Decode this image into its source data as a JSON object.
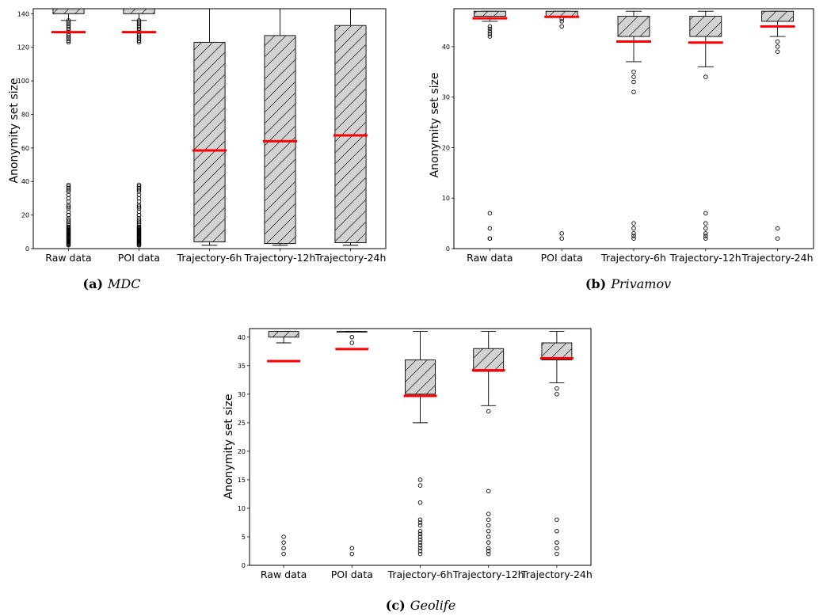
{
  "chart_data": [
    {
      "type": "box",
      "panel_label": "(a)",
      "caption": "MDC",
      "ylabel": "Anonymity set size",
      "ylim": [
        0,
        143
      ],
      "yticks": [
        0,
        20,
        40,
        60,
        80,
        100,
        120,
        140
      ],
      "categories": [
        "Raw data",
        "POI data",
        "Trajectory-6h",
        "Trajectory-12h",
        "Trajectory-24h"
      ],
      "boxes": [
        {
          "q1": 140,
          "q3": 143,
          "whisker_low": 136,
          "whisker_high": 143,
          "mean": 129,
          "outliers": [
            2,
            2.5,
            3,
            3.5,
            4,
            4.5,
            5,
            5.5,
            6,
            6.5,
            7,
            7.5,
            8,
            8.5,
            9,
            9.5,
            10,
            10.5,
            11,
            11.5,
            12,
            12.5,
            13,
            14,
            15,
            16,
            17,
            18,
            20,
            20,
            22,
            24,
            25,
            26,
            28,
            30,
            32,
            34,
            35,
            36,
            37,
            38,
            123,
            124,
            125,
            126,
            127,
            128,
            130,
            131,
            132,
            133,
            134,
            135,
            136
          ]
        },
        {
          "q1": 140,
          "q3": 143,
          "whisker_low": 136,
          "whisker_high": 143,
          "mean": 129,
          "outliers": [
            2,
            2.5,
            3,
            3.5,
            4,
            4.5,
            5,
            5.5,
            6,
            6.5,
            7,
            7.5,
            8,
            8.5,
            9,
            9.5,
            10,
            10.5,
            11,
            11.5,
            12,
            12.5,
            13,
            14,
            15,
            16,
            17,
            18,
            20,
            20,
            22,
            24,
            25,
            26,
            28,
            30,
            32,
            34,
            35,
            36,
            37,
            38,
            123,
            124,
            125,
            126,
            127,
            128,
            130,
            131,
            132,
            133,
            134,
            135,
            136
          ]
        },
        {
          "q1": 4,
          "q3": 123,
          "whisker_low": 2,
          "whisker_high": 143,
          "mean": 58.5,
          "outliers": []
        },
        {
          "q1": 3,
          "q3": 127,
          "whisker_low": 2,
          "whisker_high": 143,
          "mean": 64,
          "outliers": []
        },
        {
          "q1": 3.5,
          "q3": 133,
          "whisker_low": 2,
          "whisker_high": 143,
          "mean": 67.5,
          "outliers": []
        }
      ]
    },
    {
      "type": "box",
      "panel_label": "(b)",
      "caption": "Privamov",
      "ylabel": "Anonymity set size",
      "ylim": [
        0,
        47.5
      ],
      "yticks": [
        0,
        10,
        20,
        30,
        40
      ],
      "categories": [
        "Raw data",
        "POI data",
        "Trajectory-6h",
        "Trajectory-12h",
        "Trajectory-24h"
      ],
      "boxes": [
        {
          "q1": 46,
          "q3": 47,
          "whisker_low": 45,
          "whisker_high": 47,
          "mean": 45.6,
          "outliers": [
            2,
            2,
            4,
            7,
            42,
            42.5,
            43,
            43.5,
            44
          ]
        },
        {
          "q1": 46,
          "q3": 47,
          "whisker_low": 46,
          "whisker_high": 47,
          "mean": 45.9,
          "outliers": [
            2,
            3,
            44,
            45,
            45.5
          ]
        },
        {
          "q1": 42,
          "q3": 46,
          "whisker_low": 37,
          "whisker_high": 47,
          "mean": 41,
          "outliers": [
            2,
            2.5,
            3,
            4,
            5,
            31,
            33,
            34,
            35
          ]
        },
        {
          "q1": 42,
          "q3": 46,
          "whisker_low": 36,
          "whisker_high": 47,
          "mean": 40.8,
          "outliers": [
            2,
            2.5,
            3,
            4,
            5,
            7,
            34
          ]
        },
        {
          "q1": 45,
          "q3": 47,
          "whisker_low": 42,
          "whisker_high": 47,
          "mean": 44,
          "outliers": [
            2,
            4,
            39,
            40,
            41
          ]
        }
      ]
    },
    {
      "type": "box",
      "panel_label": "(c)",
      "caption": "Geolife",
      "ylabel": "Anonymity set size",
      "ylim": [
        0,
        41.5
      ],
      "yticks": [
        0,
        5,
        10,
        15,
        20,
        25,
        30,
        35,
        40
      ],
      "categories": [
        "Raw data",
        "POI data",
        "Trajectory-6h",
        "Trajectory-12h",
        "Trajectory-24h"
      ],
      "boxes": [
        {
          "q1": 40,
          "q3": 41,
          "whisker_low": 39,
          "whisker_high": 41,
          "mean": 35.8,
          "outliers": [
            2,
            3,
            4,
            5
          ]
        },
        {
          "q1": 41,
          "q3": 41,
          "whisker_low": 41,
          "whisker_high": 41,
          "mean": 37.9,
          "outliers": [
            2,
            3,
            39,
            40
          ]
        },
        {
          "q1": 30,
          "q3": 36,
          "whisker_low": 25,
          "whisker_high": 41,
          "mean": 29.7,
          "outliers": [
            2,
            2.5,
            3,
            3.5,
            4,
            4.5,
            5,
            5.5,
            6,
            7,
            7.5,
            8,
            11,
            14,
            15
          ]
        },
        {
          "q1": 34,
          "q3": 38,
          "whisker_low": 28,
          "whisker_high": 41,
          "mean": 34.2,
          "outliers": [
            2,
            2.5,
            3,
            4,
            5,
            6,
            7,
            8,
            9,
            13,
            27
          ]
        },
        {
          "q1": 36,
          "q3": 39,
          "whisker_low": 32,
          "whisker_high": 41,
          "mean": 36.3,
          "outliers": [
            2,
            3,
            4,
            6,
            8,
            30,
            31
          ]
        }
      ]
    }
  ],
  "style": {
    "box_fill": "#d3d3d3",
    "box_hatch": "diagonal",
    "mean_color": "#ff0000",
    "outlier_marker": "open-circle"
  }
}
